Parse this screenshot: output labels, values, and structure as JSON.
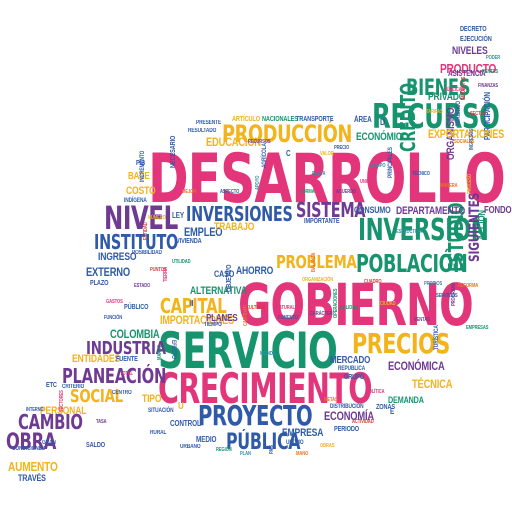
{
  "palette": {
    "pink": "#e2357a",
    "purple": "#6e3a92",
    "green": "#15946d",
    "teal": "#2f8fa6",
    "blue": "#2f5aa8",
    "orange": "#e8761f",
    "yellow": "#f2b31b",
    "red": "#d9383a",
    "gray": "#6f6f6f"
  },
  "words": {
    "desarrollo": "DESARROLLO",
    "gobierno": "GOBIERNO",
    "servicio": "SERVICIO",
    "crecimiento": "CRECIMIENTO",
    "recurso": "RECURSO",
    "inversion": "INVERSIÓN",
    "produccion": "PRODUCCIÓN",
    "proyecto": "PROYECTO",
    "poblacion": "POBLACIÓN",
    "nivel": "NIVEL",
    "precios": "PRECIOS",
    "inversiones": "INVERSIONES",
    "instituto": "INSTITUTO",
    "sistema": "SISTEMA",
    "industria": "INDUSTRIA",
    "planeacion": "PLANEACIÓN",
    "capital": "CAPITAL",
    "bienes": "BIENES",
    "cambio": "CAMBIO",
    "obra": "OBRA",
    "social": "SOCIAL",
    "publica": "PÚBLICA",
    "problema": "PROBLEMA",
    "credito": "CRÉDITO",
    "estudio": "ESTUDIO",
    "siguientes": "SIGUIENTES",
    "importaciones": "IMPORTACIONES",
    "exportaciones": "EXPORTACIONES",
    "economico": "ECONÓMICO",
    "economica": "ECONÓMICA",
    "tecnica": "TÉCNICA",
    "empresa": "EMPRESA",
    "economia": "ECONOMÍA",
    "producto": "PRODUCTO",
    "niveles": "NIVELES",
    "educacion": "EDUCACIÓN",
    "departamento": "DEPARTAMENTO",
    "empleo": "EMPLEO",
    "trabajo": "TRABAJO",
    "ingreso": "INGRESO",
    "externo": "EXTERNO",
    "alternativa": "ALTERNATIVA",
    "colombia": "COLOMBIA",
    "mercado": "MERCADO",
    "ahorro": "AHORRO",
    "aumento": "AUMENTO",
    "traves": "TRAVÉS",
    "personal": "PERSONAL",
    "entidades": "ENTIDADES",
    "planes": "PLANES",
    "costo": "COSTO",
    "base": "BASE",
    "privado": "PRIVADO",
    "accion": "ACCIÓN",
    "area": "ÁREA",
    "consumo": "CONSUMO",
    "fondo": "FONDO",
    "caso": "CASO",
    "medio": "MEDIO",
    "control": "CONTROL",
    "decreto": "DECRETO",
    "ejecucion": "EJECUCIÓN",
    "asistencia": "ASISTENCIA",
    "transporte": "TRANSPORTE",
    "nacionales": "NACIONALES",
    "articulo": "ARTÍCULO",
    "ley": "LEY",
    "publico": "PÚBLICO",
    "etc": "ETC",
    "demanda": "DEMANDA",
    "tipo": "TIPO",
    "fuente": "FUENTE",
    "grupo": "GRUPO",
    "periodo": "PERIODO",
    "zonas": "ZONAS",
    "plazo": "PLAZO",
    "saldo": "SALDO",
    "vivienda": "VIVIENDA",
    "objetivo": "OBJETIVO",
    "criterio": "CRITERIO",
    "centro": "CENTRO",
    "situacion": "SITUACIÓN",
    "organismo": "ORGANISMO",
    "participacion": "PARTICIPACIÓN",
    "necesario": "NECESARIO",
    "principales": "PRINCIPALES",
    "distribucion": "DISTRIBUCIÓN",
    "importante": "IMPORTANTE",
    "resultado": "RESULTADO",
    "condiciones": "CONDICIONES",
    "gran": "GRAN",
    "tiempo": "TIEMPO",
    "presente": "PRESENTE",
    "republica": "REPÚBLICA",
    "urbano": "URBANO",
    "posibilidad": "POSIBILIDAD",
    "indigena": "INDÍGENA",
    "incremento": "INCREMENTO",
    "efecto": "EFECTO",
    "agricola": "AGRÍCOLA",
    "interno": "INTERNO",
    "ultimo": "ÚLTIMO",
    "rural": "RURAL",
    "pib": "PIB",
    "c": "C",
    "d": "D",
    "e": "E",
    "ii": "II",
    "u": "U",
    "sectores": "SECTORES",
    "recursos": "RECURSOS",
    "utilidad": "UTILIDAD",
    "estructura": "ESTRUCTURA",
    "funcion": "FUNCIÓN",
    "cantidad": "CANTIDAD",
    "valor": "VALOR",
    "cuadro": "CUADRO",
    "total": "TOTAL",
    "tasa": "TASA",
    "marco": "MARCO",
    "renta": "RENTA",
    "precio": "PRECIO",
    "metas": "METAS",
    "ciudad": "CIUDAD",
    "entidad": "ENTIDAD",
    "gastos": "GASTOS",
    "ventas": "VENTAS",
    "region": "REGIÓN",
    "plan": "PLAN",
    "pais": "PAÍS",
    "mano": "MANO",
    "obras": "OBRAS",
    "actividad": "ACTIVIDAD",
    "politica": "POLÍTICA",
    "programa": "PROGRAMA",
    "empresas": "EMPRESAS",
    "equipo": "EQUIPO",
    "tecnico": "TÉCNICO",
    "manera": "MANERA",
    "proceso": "PROCESO",
    "sector": "SECTOR",
    "unidad": "UNIDAD",
    "acuerdo": "ACUERDO",
    "forma": "FORMA",
    "apoyo": "APOYO",
    "aspecto": "ASPECTO",
    "mejor": "MEJOR",
    "numero": "NÚMERO",
    "puntos": "PUNTOS",
    "tierra": "TIERRA",
    "estado": "ESTADO",
    "calidad": "CALIDAD",
    "medida": "MEDIDA",
    "fomento": "FOMENTO",
    "balanza": "BALANZA",
    "organizacion": "ORGANIZACIÓN",
    "cultura": "CULTURA",
    "naturaleza": "NATURALEZA",
    "caracter": "CARÁCTER",
    "operaciones": "OPERACIONES",
    "propios": "PROPIOS",
    "servicios": "SERVICIOS",
    "reforma": "REFORMA",
    "tarifas": "TARIFAS",
    "impuestos": "IMPUESTOS",
    "publicas": "PÚBLICAS",
    "finanzas": "FINANZAS",
    "rentas": "RENTAS",
    "poder": "PODER",
    "ingresos": "INGRESOS",
    "sociales": "SOCIALES",
    "turistico": "TURÍSTICO",
    "turistica": "TURÍSTICA"
  }
}
